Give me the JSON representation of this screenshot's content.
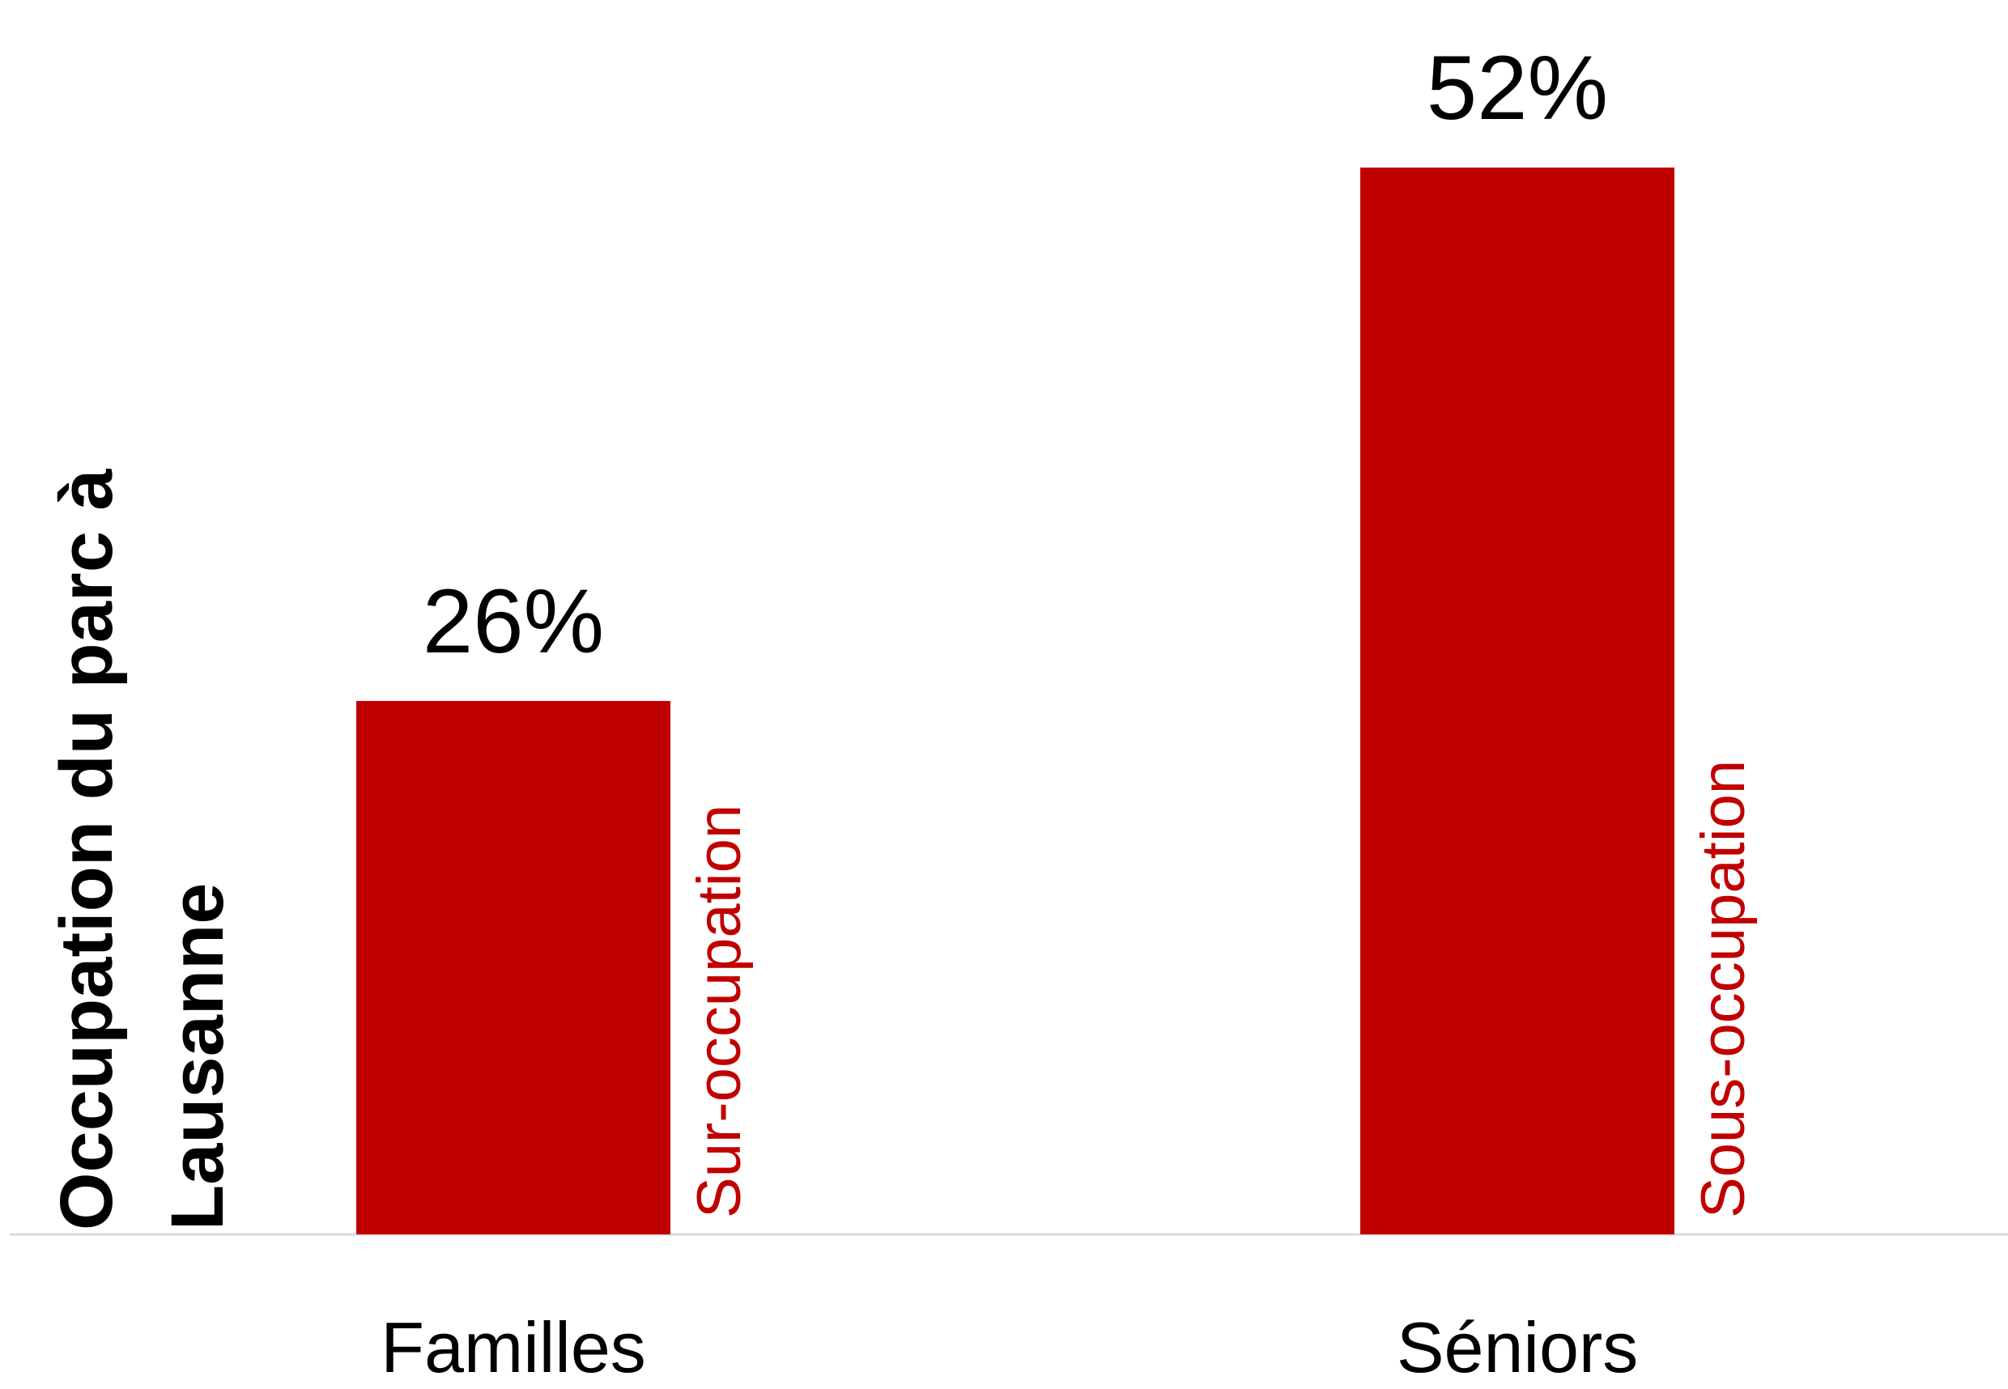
{
  "chart_data": {
    "type": "bar",
    "title": "",
    "ylabel_lines": [
      "Occupation du parc à",
      "Lausanne"
    ],
    "xlabel": "",
    "categories": [
      "Familles",
      "Séniors"
    ],
    "values": [
      26,
      52
    ],
    "value_labels": [
      "26%",
      "52%"
    ],
    "bar_annotations": [
      "Sur-occupation",
      "Sous-occupation"
    ],
    "unit": "%",
    "ylim": [
      0,
      52
    ],
    "grid": false,
    "legend": "none",
    "colors": {
      "bar": "#c00000",
      "annotation": "#c00000",
      "text": "#000000",
      "baseline": "#d9d9d9"
    }
  }
}
